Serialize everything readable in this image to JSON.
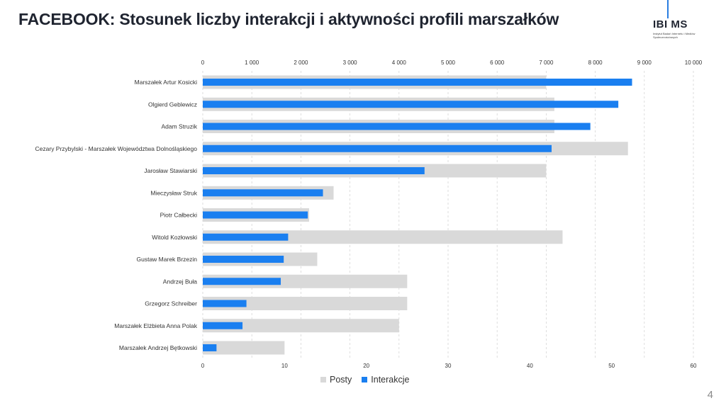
{
  "header": {
    "title": "FACEBOOK: Stosunek liczby interakcji i aktywności profili marszałków"
  },
  "logo": {
    "text": "IBI MS",
    "subtitle": "Instytut Badań Internetu i Mediów Społecznościowych"
  },
  "page_number": "4",
  "colors": {
    "posts": "#d9d9d9",
    "interactions": "#1a7ff0",
    "grid": "#d6d6d6"
  },
  "chart_data": {
    "type": "bar",
    "orientation": "horizontal",
    "title": "",
    "categories": [
      "Marszałek Artur Kosicki",
      "Olgierd Geblewicz",
      "Adam Struzik",
      "Cezary Przybylski - Marszałek Województwa Dolnośląskiego",
      "Jarosław Stawiarski",
      "Mieczysław Struk",
      "Piotr Całbecki",
      "Witold Kozłowski",
      "Gustaw Marek Brzezin",
      "Andrzej Buła",
      "Grzegorz Schreiber",
      "Marszałek Elżbieta Anna Polak",
      "Marszałek Andrzej Bętkowski"
    ],
    "series": [
      {
        "name": "Posty",
        "axis": "bottom",
        "values": [
          42,
          43,
          43,
          52,
          42,
          16,
          13,
          44,
          14,
          25,
          25,
          24,
          10
        ]
      },
      {
        "name": "Interakcje",
        "axis": "top",
        "values": [
          8750,
          8470,
          7900,
          7110,
          4520,
          2450,
          2140,
          1740,
          1650,
          1590,
          890,
          810,
          280
        ]
      }
    ],
    "top_axis": {
      "ticks": [
        "0",
        "1 000",
        "2 000",
        "3 000",
        "4 000",
        "5 000",
        "6 000",
        "7 000",
        "8 000",
        "9 000",
        "10 000"
      ],
      "range": [
        0,
        10000
      ]
    },
    "bottom_axis": {
      "ticks": [
        "0",
        "10",
        "20",
        "30",
        "40",
        "50",
        "60"
      ],
      "range": [
        0,
        60
      ]
    },
    "grid": true,
    "legend_position": "bottom-center"
  }
}
